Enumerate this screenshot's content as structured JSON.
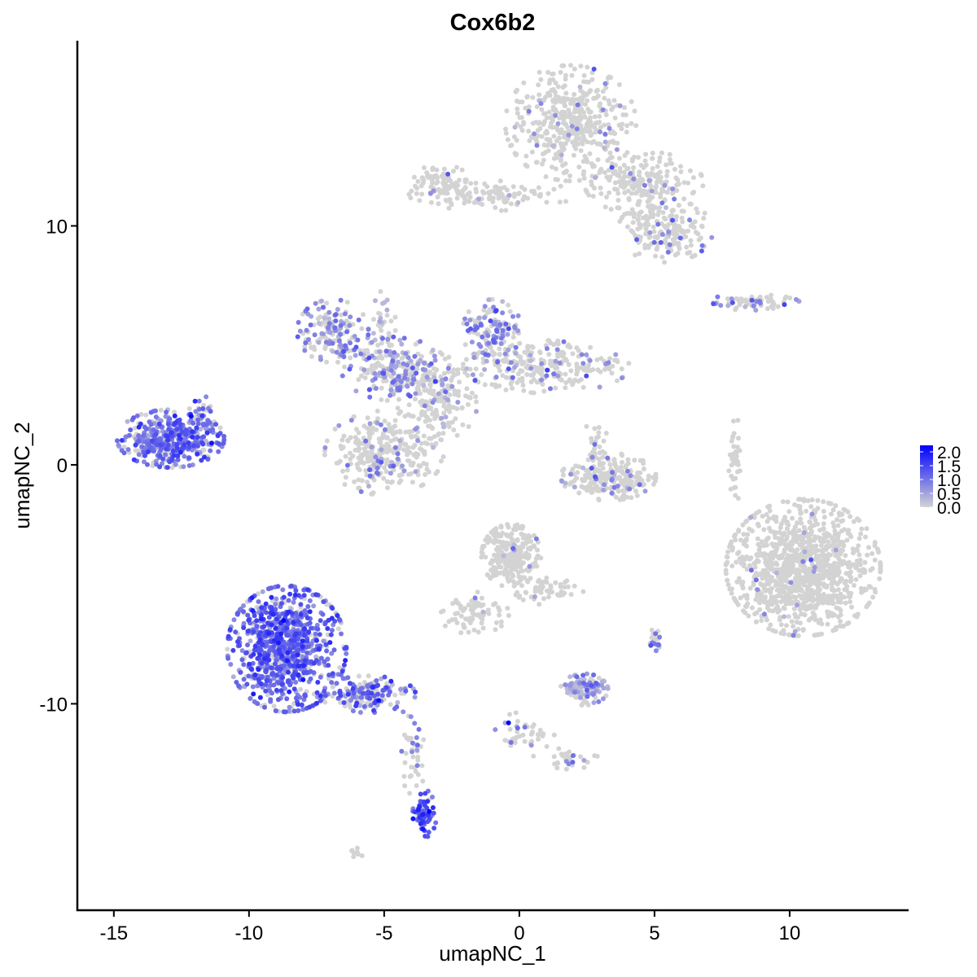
{
  "chart_data": {
    "type": "scatter",
    "title": "Cox6b2",
    "xlabel": "umapNC_1",
    "ylabel": "umapNC_2",
    "xlim": [
      -16.35,
      14.37
    ],
    "ylim": [
      -18.64,
      17.75
    ],
    "xticks": [
      -15,
      -10,
      -5,
      0,
      5,
      10
    ],
    "yticks": [
      -10,
      0,
      10
    ],
    "grid": false,
    "legend": {
      "placement": "right",
      "type": "colorbar",
      "min": 0.0,
      "max": 2.0,
      "ticks": [
        "0.0",
        "0.5",
        "1.0",
        "1.5",
        "2.0"
      ],
      "low_color": "#d3d3d3",
      "high_color": "#0000ff"
    },
    "clusters": [
      {
        "name": "top-main",
        "cx": 1.9,
        "cy": 14.3,
        "sx": 1.1,
        "sy": 1.1,
        "n": 450,
        "p_pos": 0.03,
        "level": 0.6
      },
      {
        "name": "top-arm-right",
        "cx": 4.6,
        "cy": 11.8,
        "sx": 1.0,
        "sy": 0.6,
        "n": 220,
        "p_pos": 0.06,
        "level": 0.7
      },
      {
        "name": "top-arm-lower",
        "cx": 5.4,
        "cy": 9.8,
        "sx": 0.8,
        "sy": 0.6,
        "n": 180,
        "p_pos": 0.08,
        "level": 0.7
      },
      {
        "name": "top-arm-left",
        "cx": -1.0,
        "cy": 11.3,
        "sx": 1.4,
        "sy": 0.3,
        "n": 120,
        "p_pos": 0.05,
        "level": 0.6
      },
      {
        "name": "top-arm-far-left",
        "cx": -2.9,
        "cy": 11.8,
        "sx": 0.5,
        "sy": 0.35,
        "n": 70,
        "p_pos": 0.05,
        "level": 0.6
      },
      {
        "name": "mid-left-arm",
        "cx": -6.9,
        "cy": 5.6,
        "sx": 0.6,
        "sy": 0.6,
        "n": 160,
        "p_pos": 0.55,
        "level": 0.6
      },
      {
        "name": "mid-hub",
        "cx": -4.6,
        "cy": 4.0,
        "sx": 0.9,
        "sy": 0.6,
        "n": 220,
        "p_pos": 0.4,
        "level": 0.6
      },
      {
        "name": "mid-center",
        "cx": -3.0,
        "cy": 2.8,
        "sx": 0.7,
        "sy": 0.8,
        "n": 180,
        "p_pos": 0.15,
        "level": 0.5
      },
      {
        "name": "mid-upper-right",
        "cx": -1.0,
        "cy": 5.6,
        "sx": 0.5,
        "sy": 0.6,
        "n": 130,
        "p_pos": 0.5,
        "level": 0.7
      },
      {
        "name": "mid-right-arm",
        "cx": 1.0,
        "cy": 4.1,
        "sx": 1.4,
        "sy": 0.5,
        "n": 260,
        "p_pos": 0.12,
        "level": 0.6
      },
      {
        "name": "mid-bottom-blob",
        "cx": -5.0,
        "cy": 0.5,
        "sx": 1.0,
        "sy": 0.8,
        "n": 320,
        "p_pos": 0.15,
        "level": 0.6
      },
      {
        "name": "mid-stem",
        "cx": -5.0,
        "cy": 6.0,
        "sx": 0.2,
        "sy": 0.6,
        "n": 30,
        "p_pos": 0.2,
        "level": 0.5
      },
      {
        "name": "left-cluster",
        "cx": -12.9,
        "cy": 1.1,
        "sx": 0.9,
        "sy": 0.55,
        "n": 420,
        "p_pos": 0.8,
        "level": 0.9
      },
      {
        "name": "left-cluster-tip",
        "cx": -11.7,
        "cy": 2.2,
        "sx": 0.25,
        "sy": 0.3,
        "n": 30,
        "p_pos": 0.7,
        "level": 0.8
      },
      {
        "name": "bottom-left-main",
        "cx": -8.6,
        "cy": -7.7,
        "sx": 1.0,
        "sy": 1.2,
        "n": 900,
        "p_pos": 0.8,
        "level": 1.0
      },
      {
        "name": "bottom-left-tail",
        "cx": -5.6,
        "cy": -9.6,
        "sx": 0.8,
        "sy": 0.35,
        "n": 180,
        "p_pos": 0.55,
        "level": 0.9
      },
      {
        "name": "bottom-left-stream",
        "cx": -4.0,
        "cy": -12.0,
        "sx": 0.25,
        "sy": 0.9,
        "n": 40,
        "p_pos": 0.3,
        "level": 0.7
      },
      {
        "name": "bottom-left-small",
        "cx": -3.5,
        "cy": -14.6,
        "sx": 0.2,
        "sy": 0.45,
        "n": 70,
        "p_pos": 0.8,
        "level": 1.2
      },
      {
        "name": "right-big",
        "cx": 10.5,
        "cy": -4.3,
        "sx": 1.3,
        "sy": 1.3,
        "n": 1100,
        "p_pos": 0.02,
        "level": 0.6
      },
      {
        "name": "center-bottom-upper",
        "cx": -0.3,
        "cy": -3.8,
        "sx": 0.5,
        "sy": 0.6,
        "n": 260,
        "p_pos": 0.02,
        "level": 0.5
      },
      {
        "name": "center-bottom-arm",
        "cx": -1.7,
        "cy": -6.2,
        "sx": 0.6,
        "sy": 0.4,
        "n": 80,
        "p_pos": 0.05,
        "level": 0.5
      },
      {
        "name": "center-bottom-right",
        "cx": 1.1,
        "cy": -5.2,
        "sx": 0.6,
        "sy": 0.3,
        "n": 60,
        "p_pos": 0.05,
        "level": 0.5
      },
      {
        "name": "center-right",
        "cx": 3.3,
        "cy": -0.5,
        "sx": 0.8,
        "sy": 0.45,
        "n": 230,
        "p_pos": 0.08,
        "level": 0.6
      },
      {
        "name": "center-right-stem",
        "cx": 2.8,
        "cy": 1.0,
        "sx": 0.2,
        "sy": 0.5,
        "n": 25,
        "p_pos": 0.1,
        "level": 0.6
      },
      {
        "name": "small-purple",
        "cx": 2.4,
        "cy": -9.4,
        "sx": 0.4,
        "sy": 0.3,
        "n": 120,
        "p_pos": 0.65,
        "level": 0.5
      },
      {
        "name": "right-upper-strip",
        "cx": 8.6,
        "cy": 6.8,
        "sx": 0.8,
        "sy": 0.15,
        "n": 70,
        "p_pos": 0.3,
        "level": 0.7
      },
      {
        "name": "right-vertical",
        "cx": 8.0,
        "cy": 0.2,
        "sx": 0.12,
        "sy": 0.8,
        "n": 40,
        "p_pos": 0.02,
        "level": 0.5
      },
      {
        "name": "stream-low",
        "cx": 0.2,
        "cy": -11.2,
        "sx": 0.5,
        "sy": 0.4,
        "n": 40,
        "p_pos": 0.2,
        "level": 0.6
      },
      {
        "name": "stream-low-right",
        "cx": 1.8,
        "cy": -12.3,
        "sx": 0.6,
        "sy": 0.2,
        "n": 30,
        "p_pos": 0.2,
        "level": 0.6
      },
      {
        "name": "small-right",
        "cx": 5.0,
        "cy": -7.3,
        "sx": 0.12,
        "sy": 0.25,
        "n": 20,
        "p_pos": 0.5,
        "level": 0.8
      },
      {
        "name": "small-bottom",
        "cx": -6.0,
        "cy": -16.2,
        "sx": 0.15,
        "sy": 0.1,
        "n": 8,
        "p_pos": 0.0,
        "level": 0.5
      }
    ],
    "highlight_points": [
      {
        "x": -0.4,
        "y": -10.8,
        "value": 2.0
      }
    ]
  }
}
